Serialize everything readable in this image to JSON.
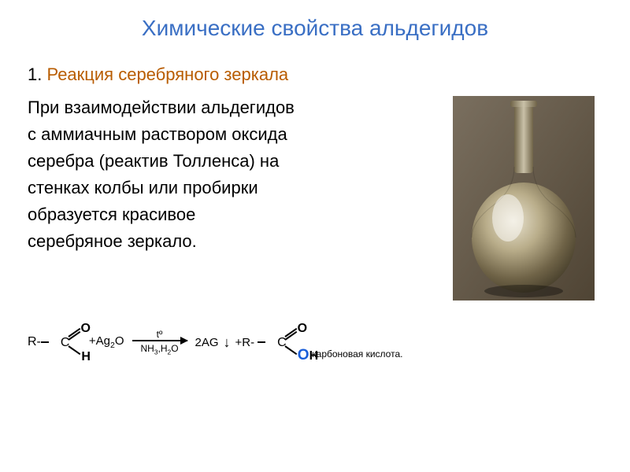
{
  "title": "Химические свойства альдегидов",
  "title_color": "#3a6fc4",
  "subtitle_number": "1.",
  "subtitle_text": "Реакция серебряного зеркала",
  "subtitle_color": "#b85c00",
  "body_lines": [
    "При взаимодействии альдегидов",
    "с аммиачным раствором оксида",
    "серебра (реактив Толленса) на",
    "стенках колбы или пробирки",
    "образуется красивое",
    "серебряное зеркало."
  ],
  "body_color": "#000000",
  "reaction": {
    "reactant_r": "R-",
    "c": "C",
    "o_top": "O",
    "h_bot": "H",
    "plus1": "+Ag",
    "ag_sub": "2",
    "plus1_tail": "O",
    "arrow_top": "tº",
    "arrow_bottom_1": "NH",
    "arrow_bottom_1_sub": "3",
    "arrow_bottom_comma": ",H",
    "arrow_bottom_2_sub": "2",
    "arrow_bottom_tail": "O",
    "product_ag": "2AG",
    "down_arrow": "↓",
    "plus2": "+R-",
    "oh_o": "O",
    "oh_h": "H",
    "acid_label": "карбоновая кислота."
  },
  "flask": {
    "bg_wall": "#7a6f5f",
    "bg_wall_dark": "#4f4434",
    "flask_silver_light": "#e8e2cf",
    "flask_silver_mid": "#b9ad8a",
    "flask_silver_dark": "#6f6347",
    "flask_silver_shadow": "#3b3423",
    "neck_color": "#c9c1a8"
  }
}
